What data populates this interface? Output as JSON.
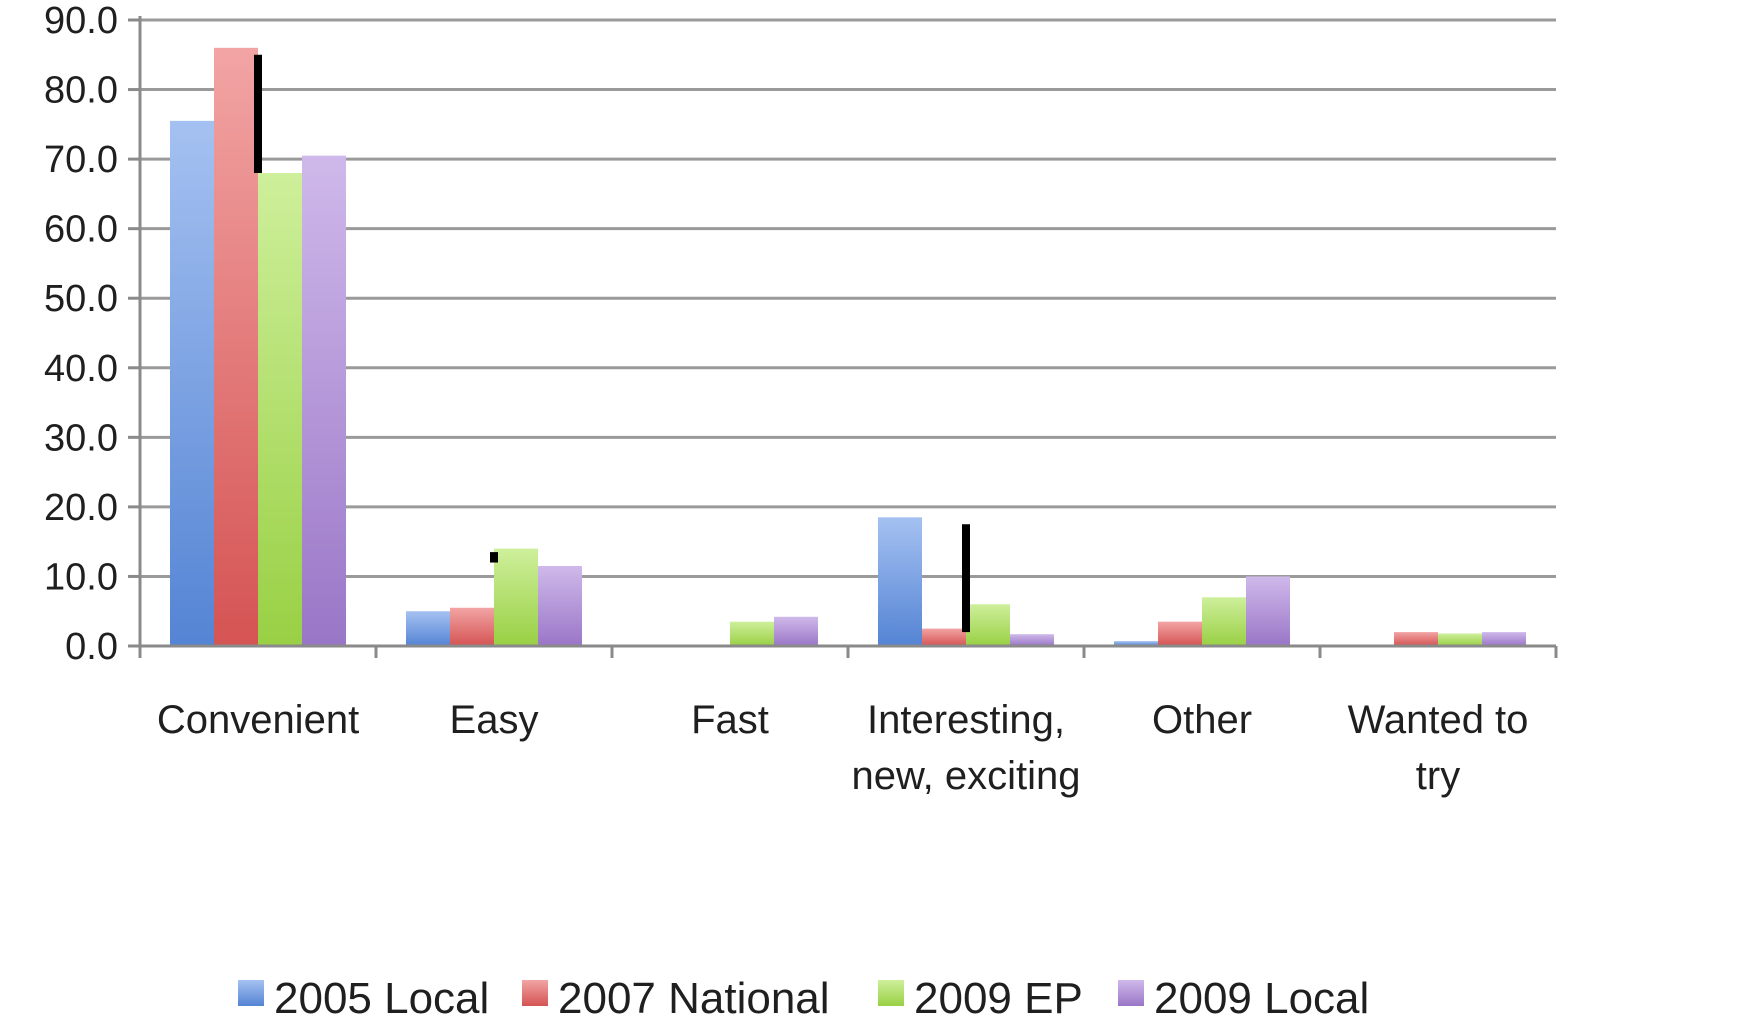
{
  "chart_data": {
    "type": "bar",
    "title": "",
    "xlabel": "",
    "ylabel": "",
    "ylim": [
      0,
      90
    ],
    "yticks": [
      "0.0",
      "10.0",
      "20.0",
      "30.0",
      "40.0",
      "50.0",
      "60.0",
      "70.0",
      "80.0",
      "90.0"
    ],
    "grid": true,
    "legend_position": "bottom",
    "categories": [
      [
        "Convenient"
      ],
      [
        "Easy"
      ],
      [
        "Fast"
      ],
      [
        "Interesting,",
        "new, exciting"
      ],
      [
        "Other"
      ],
      [
        "Wanted to",
        "try"
      ]
    ],
    "series": [
      {
        "name": "2005 Local",
        "color": "#5b8fe6",
        "values": [
          75.5,
          5.0,
          0.0,
          18.5,
          0.7,
          0.0
        ]
      },
      {
        "name": "2007 National",
        "color": "#e85a5a",
        "values": [
          86.0,
          5.5,
          0.0,
          2.5,
          3.5,
          2.0
        ]
      },
      {
        "name": "2009 EP",
        "color": "#a6e24a",
        "values": [
          68.0,
          14.0,
          3.5,
          6.0,
          7.0,
          1.8
        ]
      },
      {
        "name": "2009 Local",
        "color": "#a780d8",
        "values": [
          70.5,
          11.5,
          4.2,
          1.7,
          10.0,
          2.0
        ]
      }
    ],
    "difference_markers": [
      {
        "category": 0,
        "from_value": 85.0,
        "to_value": 68.0
      },
      {
        "category": 1,
        "from_value": 13.5,
        "to_value": 12.0
      },
      {
        "category": 3,
        "from_value": 17.5,
        "to_value": 2.5
      },
      {
        "category": 3,
        "from_value": 4.5,
        "to_value": 2.0
      }
    ]
  }
}
